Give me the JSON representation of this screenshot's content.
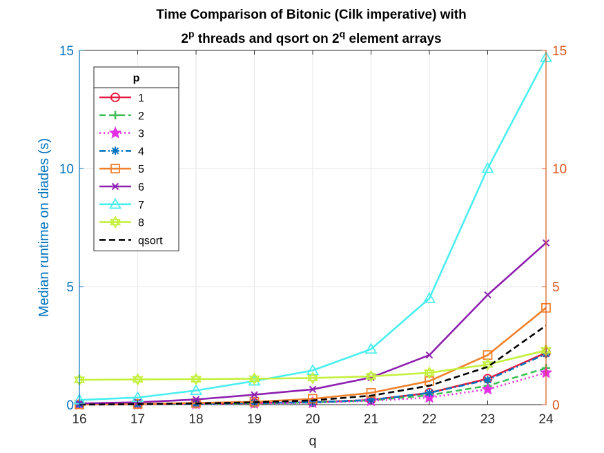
{
  "chart_data": {
    "type": "line",
    "title_line1": "Time Comparison of Bitonic (Cilk imperative) with",
    "title_line2_parts": [
      "2",
      "p",
      " threads and qsort on 2",
      "q",
      " element arrays"
    ],
    "xlabel": "q",
    "ylabel": "Median runtime on diades (s)",
    "xlim": [
      16,
      24
    ],
    "ylim_left": [
      0,
      15
    ],
    "ylim_right": [
      0,
      15
    ],
    "xticks": [
      "16",
      "17",
      "18",
      "19",
      "20",
      "21",
      "22",
      "23",
      "24"
    ],
    "yticks_left": [
      "0",
      "5",
      "10",
      "15"
    ],
    "yticks_right": [
      "0",
      "5",
      "10",
      "15"
    ],
    "grid": true,
    "legend": {
      "title": "p",
      "placement": "top-left"
    },
    "x": [
      16,
      17,
      18,
      19,
      20,
      21,
      22,
      23,
      24
    ],
    "series": [
      {
        "name": "1",
        "color": "#E8173C",
        "dash": "solid",
        "marker": "circle",
        "values": [
          0.01,
          0.02,
          0.04,
          0.07,
          0.1,
          0.2,
          0.5,
          1.1,
          2.2
        ]
      },
      {
        "name": "2",
        "color": "#3DBF55",
        "dash": "dashed",
        "marker": "plus",
        "values": [
          0.01,
          0.02,
          0.03,
          0.05,
          0.09,
          0.18,
          0.4,
          0.8,
          1.55
        ]
      },
      {
        "name": "3",
        "color": "#E52FE5",
        "dash": "dotted",
        "marker": "star",
        "values": [
          0.01,
          0.015,
          0.03,
          0.05,
          0.08,
          0.16,
          0.3,
          0.65,
          1.35
        ]
      },
      {
        "name": "4",
        "color": "#0072BD",
        "dash": "dashdot",
        "marker": "asterisk",
        "values": [
          0.01,
          0.02,
          0.04,
          0.07,
          0.1,
          0.2,
          0.5,
          1.05,
          2.15
        ]
      },
      {
        "name": "5",
        "color": "#F0812C",
        "dash": "solid",
        "marker": "square",
        "values": [
          0.01,
          0.03,
          0.07,
          0.12,
          0.25,
          0.5,
          1.0,
          2.1,
          4.1
        ]
      },
      {
        "name": "6",
        "color": "#8E1FB0",
        "dash": "solid",
        "marker": "x",
        "values": [
          0.05,
          0.1,
          0.22,
          0.42,
          0.65,
          1.15,
          2.1,
          4.65,
          6.85
        ]
      },
      {
        "name": "7",
        "color": "#49EFEF",
        "dash": "solid",
        "marker": "triangle",
        "values": [
          0.2,
          0.3,
          0.6,
          1.0,
          1.45,
          2.35,
          4.5,
          10.0,
          14.7
        ]
      },
      {
        "name": "8",
        "color": "#C4F03C",
        "dash": "solid",
        "marker": "hexagram",
        "values": [
          1.05,
          1.07,
          1.08,
          1.1,
          1.13,
          1.2,
          1.35,
          1.7,
          2.3
        ]
      },
      {
        "name": "qsort",
        "color": "#000000",
        "dash": "dashed",
        "marker": "none",
        "values": [
          0.0,
          0.02,
          0.05,
          0.1,
          0.18,
          0.38,
          0.8,
          1.6,
          3.35
        ]
      }
    ]
  }
}
